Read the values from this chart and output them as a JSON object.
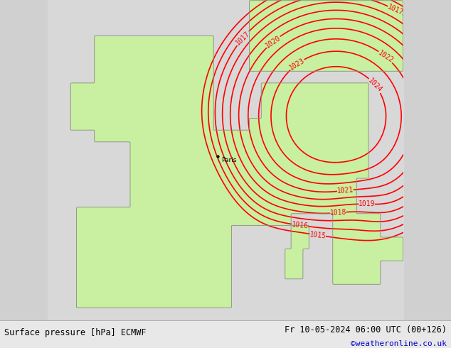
{
  "title_left": "Surface pressure [hPa] ECMWF",
  "title_right": "Fr 10-05-2024 06:00 UTC (00+126)",
  "credit": "©weatheronline.co.uk",
  "bg_color": "#d0d0d0",
  "land_color": "#c8f0a0",
  "sea_color": "#d8d8d8",
  "contour_color": "#ff0000",
  "contour_label_color": "#ff0000",
  "coast_color": "#888888",
  "title_color": "#000000",
  "credit_color": "#0000cc",
  "pressure_levels": [
    1015,
    1016,
    1017,
    1018,
    1019,
    1020,
    1021,
    1022,
    1023,
    1024
  ],
  "paris_lon": 2.35,
  "paris_lat": 48.85,
  "lon_min": -12,
  "lon_max": 18,
  "lat_min": 35,
  "lat_max": 62,
  "contour_linewidth": 1.2,
  "label_fontsize": 7,
  "bottom_bar_color": "#e8e8e8",
  "bottom_bar_height": 0.08
}
